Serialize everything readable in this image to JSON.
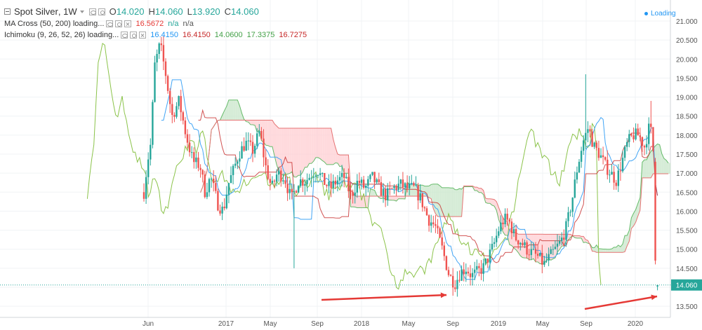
{
  "header": {
    "symbol": "Spot Silver",
    "interval": "1W",
    "ohlc": {
      "o_label": "O",
      "o": "14.020",
      "h_label": "H",
      "h": "14.060",
      "l_label": "L",
      "l": "13.920",
      "c_label": "C",
      "c": "14.060"
    }
  },
  "indicators": {
    "ma_cross": {
      "label": "MA Cross (50, 200) loading...",
      "v1": "16.5672",
      "v2": "n/a",
      "v3": "n/a"
    },
    "ichimoku": {
      "label": "Ichimoku (9, 26, 52, 26) loading...",
      "v1": "16.4150",
      "v2": "16.4150",
      "v3": "14.0600",
      "v4": "17.3375",
      "v5": "16.7275"
    }
  },
  "status": {
    "loading_label": "Loading"
  },
  "colors": {
    "up": "#26a69a",
    "down": "#ef5350",
    "chikou": "#8bc34a",
    "tenkan": "#42a5f5",
    "kijun": "#c62828",
    "cloud_bull": "#c8e6c9",
    "cloud_bear": "#ffcdd2",
    "arrow": "#e53935",
    "last_price_bg": "#26a69a"
  },
  "chart_data": {
    "type": "candlestick",
    "last_price": "14.060",
    "yaxis": {
      "ticks": [
        "13.500",
        "14.000",
        "14.500",
        "15.000",
        "15.500",
        "16.000",
        "16.500",
        "17.000",
        "17.500",
        "18.000",
        "18.500",
        "19.000",
        "19.500",
        "20.000",
        "20.500",
        "21.000"
      ],
      "range": [
        13.45,
        21.35
      ]
    },
    "xaxis": {
      "ticks": [
        "Jun",
        "2017",
        "May",
        "Sep",
        "2018",
        "May",
        "Sep",
        "2019",
        "May",
        "Sep",
        "2020"
      ]
    },
    "annotations": [
      {
        "type": "arrow",
        "description": "red arrow pointing to Sep 2018 low"
      },
      {
        "type": "arrow",
        "description": "red arrow pointing to current low"
      }
    ]
  }
}
